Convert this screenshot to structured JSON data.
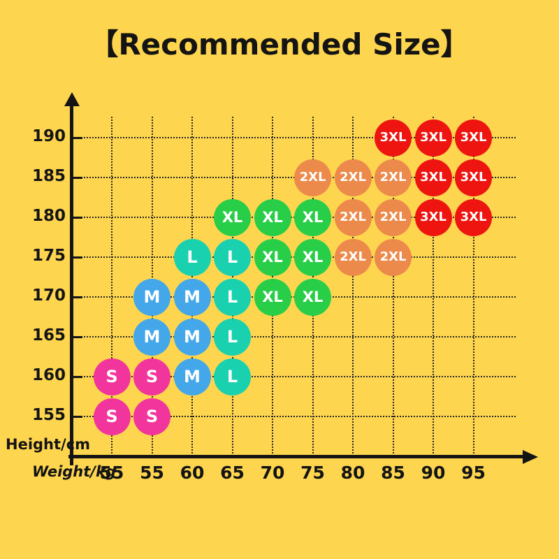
{
  "title": "【Recommended Size】",
  "axes": {
    "y_label": "Height/cm",
    "x_label": "Weight/kg",
    "y_tick_labels": [
      "190",
      "185",
      "180",
      "175",
      "170",
      "165",
      "160",
      "155"
    ],
    "x_tick_labels": [
      "55",
      "55",
      "60",
      "65",
      "70",
      "75",
      "80",
      "85",
      "90",
      "95"
    ]
  },
  "colors": {
    "background": "#FED54E",
    "axis": "#141414",
    "grid": "#262626",
    "circle_text": "#FFFFFF",
    "S": "#F1359C",
    "M": "#43A7E9",
    "L": "#19D1AE",
    "XL": "#28CE48",
    "2XL": "#EC8A4B",
    "3XL": "#EE1410"
  },
  "chart_data": {
    "type": "scatter",
    "title": "【Recommended Size】",
    "xlabel": "Weight/kg",
    "ylabel": "Height/cm",
    "grid": true,
    "y_values": [
      190,
      185,
      180,
      175,
      170,
      165,
      160,
      155
    ],
    "x_columns": [
      "55",
      "55",
      "60",
      "65",
      "70",
      "75",
      "80",
      "85",
      "90",
      "95"
    ],
    "points": [
      {
        "height": 190,
        "col": 7,
        "weight": "85",
        "size": "3XL"
      },
      {
        "height": 190,
        "col": 8,
        "weight": "90",
        "size": "3XL"
      },
      {
        "height": 190,
        "col": 9,
        "weight": "95",
        "size": "3XL"
      },
      {
        "height": 185,
        "col": 5,
        "weight": "75",
        "size": "2XL"
      },
      {
        "height": 185,
        "col": 6,
        "weight": "80",
        "size": "2XL"
      },
      {
        "height": 185,
        "col": 7,
        "weight": "85",
        "size": "2XL"
      },
      {
        "height": 185,
        "col": 8,
        "weight": "90",
        "size": "3XL"
      },
      {
        "height": 185,
        "col": 9,
        "weight": "95",
        "size": "3XL"
      },
      {
        "height": 180,
        "col": 3,
        "weight": "65",
        "size": "XL"
      },
      {
        "height": 180,
        "col": 4,
        "weight": "70",
        "size": "XL"
      },
      {
        "height": 180,
        "col": 5,
        "weight": "75",
        "size": "XL"
      },
      {
        "height": 180,
        "col": 6,
        "weight": "80",
        "size": "2XL"
      },
      {
        "height": 180,
        "col": 7,
        "weight": "85",
        "size": "2XL"
      },
      {
        "height": 180,
        "col": 8,
        "weight": "90",
        "size": "3XL"
      },
      {
        "height": 180,
        "col": 9,
        "weight": "95",
        "size": "3XL"
      },
      {
        "height": 175,
        "col": 2,
        "weight": "60",
        "size": "L"
      },
      {
        "height": 175,
        "col": 3,
        "weight": "65",
        "size": "L"
      },
      {
        "height": 175,
        "col": 4,
        "weight": "70",
        "size": "XL"
      },
      {
        "height": 175,
        "col": 5,
        "weight": "75",
        "size": "XL"
      },
      {
        "height": 175,
        "col": 6,
        "weight": "80",
        "size": "2XL"
      },
      {
        "height": 175,
        "col": 7,
        "weight": "85",
        "size": "2XL"
      },
      {
        "height": 170,
        "col": 1,
        "weight": "55",
        "size": "M"
      },
      {
        "height": 170,
        "col": 2,
        "weight": "60",
        "size": "M"
      },
      {
        "height": 170,
        "col": 3,
        "weight": "65",
        "size": "L"
      },
      {
        "height": 170,
        "col": 4,
        "weight": "70",
        "size": "XL"
      },
      {
        "height": 170,
        "col": 5,
        "weight": "75",
        "size": "XL"
      },
      {
        "height": 165,
        "col": 1,
        "weight": "55",
        "size": "M"
      },
      {
        "height": 165,
        "col": 2,
        "weight": "60",
        "size": "M"
      },
      {
        "height": 165,
        "col": 3,
        "weight": "65",
        "size": "L"
      },
      {
        "height": 160,
        "col": 0,
        "weight": "55",
        "size": "S"
      },
      {
        "height": 160,
        "col": 1,
        "weight": "55",
        "size": "S"
      },
      {
        "height": 160,
        "col": 2,
        "weight": "60",
        "size": "M"
      },
      {
        "height": 160,
        "col": 3,
        "weight": "65",
        "size": "L"
      },
      {
        "height": 155,
        "col": 0,
        "weight": "55",
        "size": "S"
      },
      {
        "height": 155,
        "col": 1,
        "weight": "55",
        "size": "S"
      }
    ]
  }
}
